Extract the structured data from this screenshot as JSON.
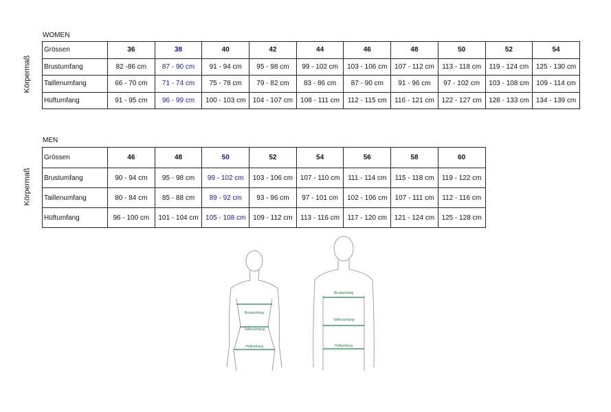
{
  "women": {
    "title": "WOMEN",
    "side_label": "Körpermaß",
    "highlight_index": 1,
    "header_label": "Grössen",
    "sizes": [
      "36",
      "38",
      "40",
      "42",
      "44",
      "46",
      "48",
      "50",
      "52",
      "54"
    ],
    "rows": [
      {
        "label": "Brustumfang",
        "values": [
          "82 -86 cm",
          "87 - 90 cm",
          "91 - 94 cm",
          "95 - 98 cm",
          "99 - 102 cm",
          "103 - 106 cm",
          "107 - 112 cm",
          "113 - 118 cm",
          "119 - 124 cm",
          "125 - 130 cm"
        ]
      },
      {
        "label": "Taillenumfang",
        "values": [
          "66 - 70 cm",
          "71 - 74 cm",
          "75 - 78 cm",
          "79 - 82 cm",
          "83 - 86 cm",
          "87 - 90 cm",
          "91 - 96 cm",
          "97 - 102 cm",
          "103 - 108 cm",
          "109 - 114 cm"
        ]
      },
      {
        "label": "Hüftumfang",
        "values": [
          "91 - 95 cm",
          "96 - 99 cm",
          "100 - 103 cm",
          "104 - 107 cm",
          "108 - 111 cm",
          "112 - 115 cm",
          "116 - 121 cm",
          "122 - 127 cm",
          "128 - 133 cm",
          "134 - 139 cm"
        ]
      }
    ]
  },
  "men": {
    "title": "MEN",
    "side_label": "Körpermaß",
    "highlight_index": 2,
    "header_label": "Grössen",
    "sizes": [
      "46",
      "48",
      "50",
      "52",
      "54",
      "56",
      "58",
      "60"
    ],
    "rows": [
      {
        "label": "Brustumfang",
        "values": [
          "90 - 94 cm",
          "95 - 98 cm",
          "99 - 102 cm",
          "103 - 106 cm",
          "107 - 110 cm",
          "111 - 114 cm",
          "115 - 118 cm",
          "119 - 122 cm"
        ]
      },
      {
        "label": "Taillenumfang",
        "values": [
          "80 - 84 cm",
          "85 - 88 cm",
          "89 - 92 cm",
          "93 - 96 cm",
          "97 - 101 cm",
          "102 - 106 cm",
          "107 - 111 cm",
          "112 - 116 cm"
        ]
      },
      {
        "label": "Hüftumfang",
        "values": [
          "96 - 100 cm",
          "101 - 104 cm",
          "105 - 108 cm",
          "109 - 112 cm",
          "113 - 116 cm",
          "117 - 120 cm",
          "121 - 124 cm",
          "125 - 128 cm"
        ]
      }
    ]
  },
  "figures": {
    "female": {
      "chest": "Brustumfang",
      "waist": "Taillenumfang",
      "hip": "Hüftumfang"
    },
    "male": {
      "chest": "Brustumfang",
      "waist": "Taillenumfang",
      "hip": "Hüftumfang"
    },
    "line_color": "#2a7a4a"
  }
}
